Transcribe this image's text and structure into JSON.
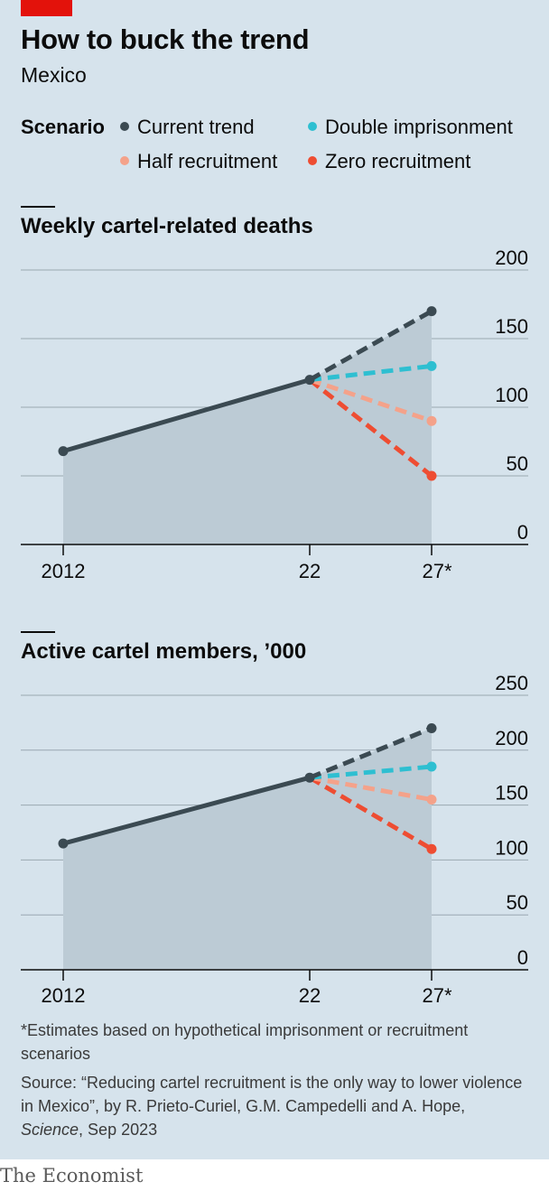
{
  "title": "How to buck the trend",
  "subtitle": "Mexico",
  "legend": {
    "title": "Scenario",
    "items": [
      {
        "label": "Current trend",
        "color": "#3b4a52"
      },
      {
        "label": "Double imprisonment",
        "color": "#2ebfd1"
      },
      {
        "label": "Half recruitment",
        "color": "#f4a28a"
      },
      {
        "label": "Zero recruitment",
        "color": "#ee4d32"
      }
    ]
  },
  "chart_data": [
    {
      "type": "line",
      "title": "Weekly cartel-related deaths",
      "x_ticks": [
        "2012",
        "22",
        "27*"
      ],
      "x": [
        2012,
        2022,
        2027
      ],
      "ylim": [
        0,
        200
      ],
      "y_ticks": [
        0,
        50,
        100,
        150,
        200
      ],
      "grid": true,
      "series": [
        {
          "name": "Current trend",
          "x": [
            2012,
            2022
          ],
          "values": [
            68,
            120
          ],
          "style": "solid"
        },
        {
          "name": "Current trend",
          "x": [
            2022,
            2027
          ],
          "values": [
            120,
            170
          ],
          "style": "dashed"
        },
        {
          "name": "Double imprisonment",
          "x": [
            2022,
            2027
          ],
          "values": [
            120,
            130
          ],
          "style": "dashed"
        },
        {
          "name": "Half recruitment",
          "x": [
            2022,
            2027
          ],
          "values": [
            120,
            90
          ],
          "style": "dashed"
        },
        {
          "name": "Zero recruitment",
          "x": [
            2022,
            2027
          ],
          "values": [
            120,
            50
          ],
          "style": "dashed"
        }
      ]
    },
    {
      "type": "line",
      "title": "Active cartel members, ’000",
      "x_ticks": [
        "2012",
        "22",
        "27*"
      ],
      "x": [
        2012,
        2022,
        2027
      ],
      "ylim": [
        0,
        250
      ],
      "y_ticks": [
        0,
        50,
        100,
        150,
        200,
        250
      ],
      "grid": true,
      "series": [
        {
          "name": "Current trend",
          "x": [
            2012,
            2022
          ],
          "values": [
            115,
            175
          ],
          "style": "solid"
        },
        {
          "name": "Current trend",
          "x": [
            2022,
            2027
          ],
          "values": [
            175,
            220
          ],
          "style": "dashed"
        },
        {
          "name": "Double imprisonment",
          "x": [
            2022,
            2027
          ],
          "values": [
            175,
            185
          ],
          "style": "dashed"
        },
        {
          "name": "Half recruitment",
          "x": [
            2022,
            2027
          ],
          "values": [
            175,
            155
          ],
          "style": "dashed"
        },
        {
          "name": "Zero recruitment",
          "x": [
            2022,
            2027
          ],
          "values": [
            175,
            110
          ],
          "style": "dashed"
        }
      ]
    }
  ],
  "footnote": "*Estimates based on hypothetical imprisonment or recruitment scenarios",
  "source": {
    "prefix": "Source: “Reducing cartel recruitment is the only way to lower violence in Mexico”, by R. Prieto-Curiel, G.M. Campedelli and A. Hope, ",
    "journal": "Science",
    "suffix": ", Sep 2023"
  },
  "brand": "The Economist"
}
